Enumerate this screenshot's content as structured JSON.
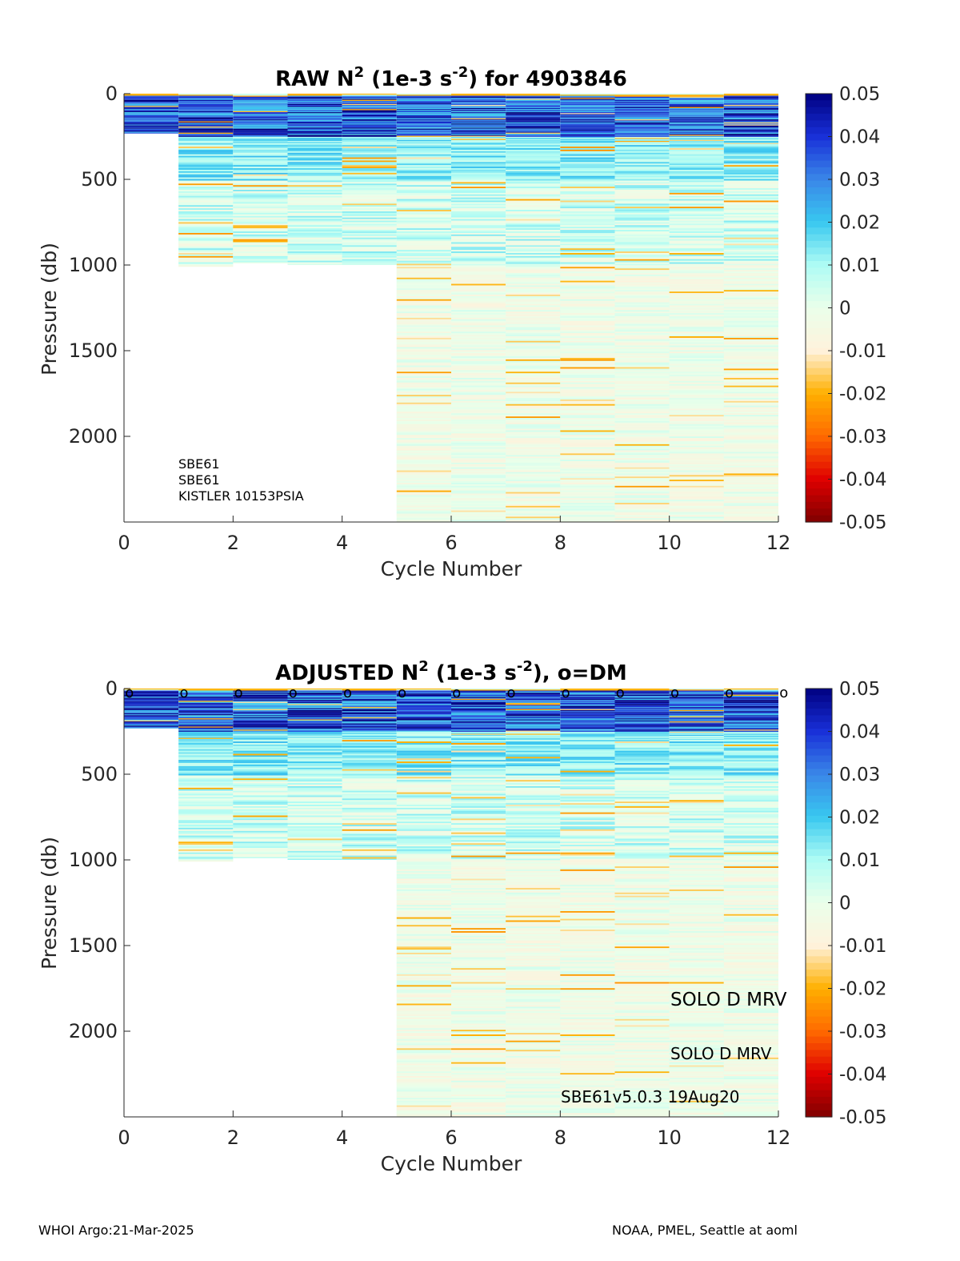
{
  "colors": {
    "background": "#ffffff",
    "axis": "#262626",
    "colormap": [
      "#800000",
      "#e00000",
      "#ff6a00",
      "#ffb000",
      "#fff2dc",
      "#eaffea",
      "#aefcf4",
      "#38c8f0",
      "#3a86e8",
      "#1830d8",
      "#000080"
    ]
  },
  "chart_data": [
    {
      "type": "heatmap",
      "title_parts": [
        "RAW N",
        "2",
        " (1e-3 s",
        "-2",
        ") for 4903846"
      ],
      "xlabel": "Cycle Number",
      "ylabel": "Pressure (db)",
      "xlim": [
        0,
        12
      ],
      "ylim": [
        0,
        2500
      ],
      "y_reversed": true,
      "xticks": [
        "0",
        "2",
        "4",
        "6",
        "8",
        "10",
        "12"
      ],
      "yticks": [
        "0",
        "500",
        "1000",
        "1500",
        "2000"
      ],
      "colorbar": {
        "range": [
          -0.05,
          0.05
        ],
        "ticks": [
          "0.05",
          "0.04",
          "0.03",
          "0.02",
          "0.01",
          "0",
          "-0.01",
          "-0.02",
          "-0.03",
          "-0.04",
          "-0.05"
        ]
      },
      "profiles": [
        {
          "cycle": 0,
          "max_pressure": 230
        },
        {
          "cycle": 1,
          "max_pressure": 1010
        },
        {
          "cycle": 2,
          "max_pressure": 990
        },
        {
          "cycle": 3,
          "max_pressure": 1000
        },
        {
          "cycle": 4,
          "max_pressure": 1000
        },
        {
          "cycle": 5,
          "max_pressure": 2500
        },
        {
          "cycle": 6,
          "max_pressure": 2500
        },
        {
          "cycle": 7,
          "max_pressure": 2500
        },
        {
          "cycle": 8,
          "max_pressure": 2500
        },
        {
          "cycle": 9,
          "max_pressure": 2500
        },
        {
          "cycle": 10,
          "max_pressure": 2500
        },
        {
          "cycle": 11,
          "max_pressure": 2500
        }
      ],
      "annotations": [
        "SBE61",
        "SBE61",
        "KISTLER 10153PSIA"
      ]
    },
    {
      "type": "heatmap",
      "title_parts": [
        "ADJUSTED N",
        "2",
        " (1e-3 s",
        "-2",
        "), o=DM"
      ],
      "xlabel": "Cycle Number",
      "ylabel": "Pressure (db)",
      "xlim": [
        0,
        12
      ],
      "ylim": [
        0,
        2500
      ],
      "y_reversed": true,
      "xticks": [
        "0",
        "2",
        "4",
        "6",
        "8",
        "10",
        "12"
      ],
      "yticks": [
        "0",
        "500",
        "1000",
        "1500",
        "2000"
      ],
      "colorbar": {
        "range": [
          -0.05,
          0.05
        ],
        "ticks": [
          "0.05",
          "0.04",
          "0.03",
          "0.02",
          "0.01",
          "0",
          "-0.01",
          "-0.02",
          "-0.03",
          "-0.04",
          "-0.05"
        ]
      },
      "profiles": [
        {
          "cycle": 0,
          "max_pressure": 230
        },
        {
          "cycle": 1,
          "max_pressure": 1010
        },
        {
          "cycle": 2,
          "max_pressure": 990
        },
        {
          "cycle": 3,
          "max_pressure": 1000
        },
        {
          "cycle": 4,
          "max_pressure": 1000
        },
        {
          "cycle": 5,
          "max_pressure": 2500
        },
        {
          "cycle": 6,
          "max_pressure": 2500
        },
        {
          "cycle": 7,
          "max_pressure": 2500
        },
        {
          "cycle": 8,
          "max_pressure": 2500
        },
        {
          "cycle": 9,
          "max_pressure": 2500
        },
        {
          "cycle": 10,
          "max_pressure": 2500
        },
        {
          "cycle": 11,
          "max_pressure": 2500
        }
      ],
      "dm_marker": "o",
      "dm_cycles": [
        0.1,
        1.1,
        2.1,
        3.1,
        4.1,
        5.1,
        6.1,
        7.1,
        8.1,
        9.1,
        10.1,
        11.1,
        12.1
      ],
      "annotations": [
        "SOLO D MRV",
        "SOLO D MRV",
        "SBE61v5.0.3 19Aug20"
      ]
    }
  ],
  "footer": {
    "left": "WHOI Argo:21-Mar-2025",
    "right": "NOAA, PMEL, Seattle at aoml"
  }
}
